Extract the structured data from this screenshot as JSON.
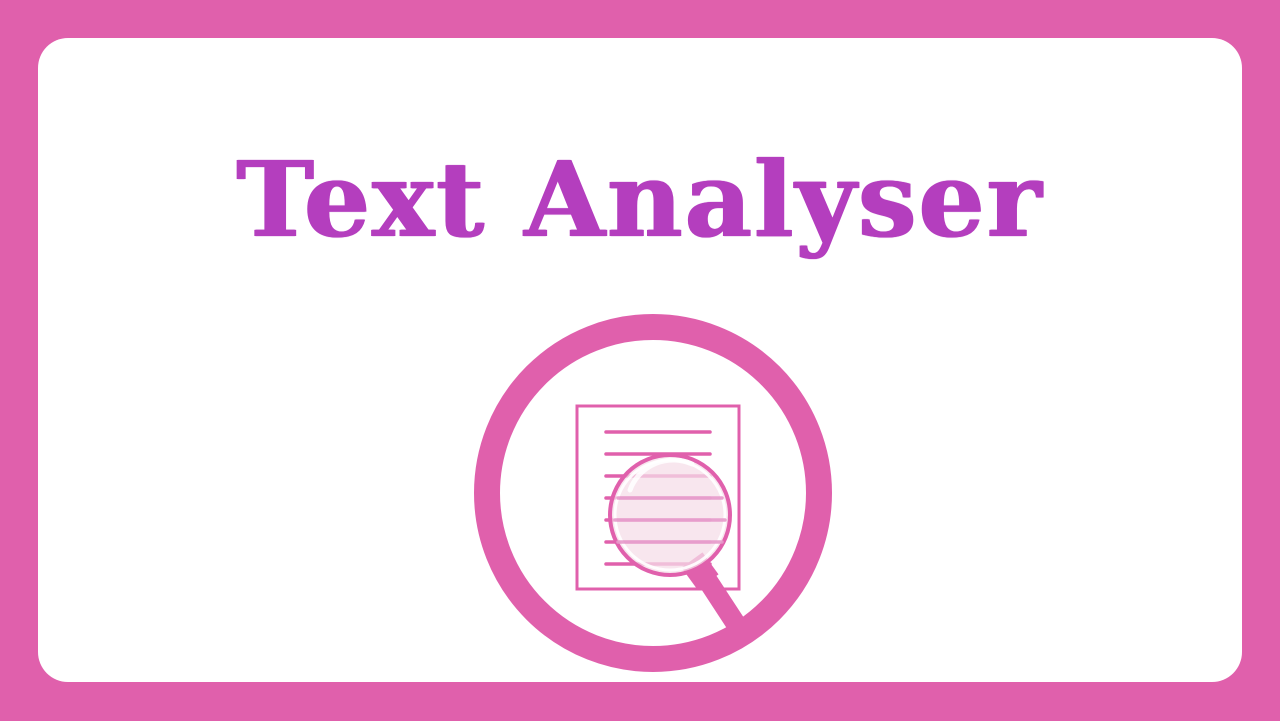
{
  "title": "Text Analyser",
  "colors": {
    "frame": "#E060AC",
    "panel": "#FFFFFF",
    "title": "#B43EBE",
    "icon": "#E060AC"
  },
  "icon": "document-magnifier-icon"
}
